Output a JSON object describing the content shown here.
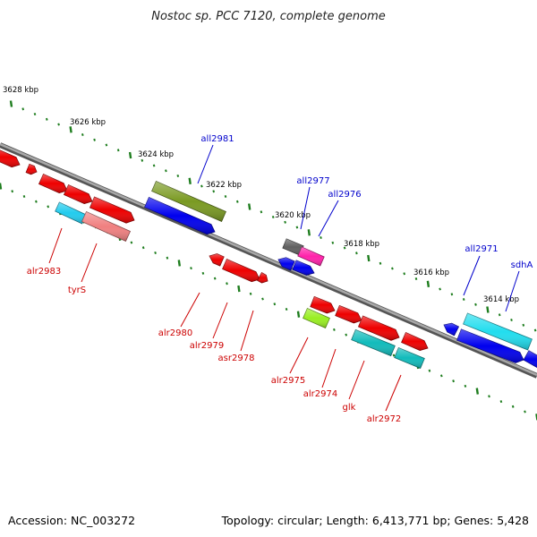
{
  "title": "Nostoc sp. PCC 7120, complete genome",
  "footer": {
    "accession": "Accession: NC_003272",
    "summary": "Topology: circular; Length: 6,413,771 bp; Genes: 5,428"
  },
  "colors": {
    "backbone": "#8a8a8a",
    "ruler": "#1e7d1e",
    "forward_label": "#0000cc",
    "reverse_label": "#cc0000"
  },
  "ruler_labels": [
    "3628 kbp",
    "3626 kbp",
    "3624 kbp",
    "3622 kbp",
    "3620 kbp",
    "3618 kbp",
    "3616 kbp",
    "3614 kbp"
  ],
  "gene_labels": [
    {
      "name": "all2981",
      "strand": "forward"
    },
    {
      "name": "all2977",
      "strand": "forward"
    },
    {
      "name": "all2976",
      "strand": "forward"
    },
    {
      "name": "all2971",
      "strand": "forward"
    },
    {
      "name": "sdhA",
      "strand": "forward"
    },
    {
      "name": "alr2983",
      "strand": "reverse"
    },
    {
      "name": "tyrS",
      "strand": "reverse"
    },
    {
      "name": "alr2980",
      "strand": "reverse"
    },
    {
      "name": "alr2979",
      "strand": "reverse"
    },
    {
      "name": "asr2978",
      "strand": "reverse"
    },
    {
      "name": "alr2975",
      "strand": "reverse"
    },
    {
      "name": "alr2974",
      "strand": "reverse"
    },
    {
      "name": "glk",
      "strand": "reverse"
    },
    {
      "name": "alr2972",
      "strand": "reverse"
    }
  ],
  "features": [
    {
      "id": "f-red-a",
      "color": "#ee0000",
      "arrow": "end"
    },
    {
      "id": "f-red-b",
      "color": "#ee0000",
      "arrow": "end"
    },
    {
      "id": "f-red-c",
      "color": "#ee0000",
      "arrow": "end"
    },
    {
      "id": "f-red-d",
      "color": "#ee0000",
      "arrow": "end"
    },
    {
      "id": "f-red-e",
      "color": "#ee0000",
      "arrow": "end"
    },
    {
      "id": "f-cyan-a",
      "color": "#22ccee",
      "arrow": "none"
    },
    {
      "id": "f-pink-tyrS",
      "color": "#f08080",
      "arrow": "none"
    },
    {
      "id": "f-olive-all2981",
      "color": "#7a9a22",
      "arrow": "none"
    },
    {
      "id": "f-blue-a",
      "color": "#0000ee",
      "arrow": "end"
    },
    {
      "id": "f-red-f",
      "color": "#ee0000",
      "arrow": "start"
    },
    {
      "id": "f-red-g",
      "color": "#ee0000",
      "arrow": "end"
    },
    {
      "id": "f-red-h",
      "color": "#ee0000",
      "arrow": "end"
    },
    {
      "id": "f-gray-all2977",
      "color": "#606060",
      "arrow": "none"
    },
    {
      "id": "f-magenta-all2976",
      "color": "#ff22aa",
      "arrow": "none"
    },
    {
      "id": "f-blue-b",
      "color": "#0000ee",
      "arrow": "start"
    },
    {
      "id": "f-blue-c",
      "color": "#0000ee",
      "arrow": "end"
    },
    {
      "id": "f-red-i",
      "color": "#ee0000",
      "arrow": "end"
    },
    {
      "id": "f-lime-alr2975",
      "color": "#99ee22",
      "arrow": "none"
    },
    {
      "id": "f-red-j",
      "color": "#ee0000",
      "arrow": "end"
    },
    {
      "id": "f-red-k",
      "color": "#ee0000",
      "arrow": "end"
    },
    {
      "id": "f-teal-glk",
      "color": "#11bbbb",
      "arrow": "none"
    },
    {
      "id": "f-red-l",
      "color": "#ee0000",
      "arrow": "end"
    },
    {
      "id": "f-teal-alr2972",
      "color": "#11bbbb",
      "arrow": "none"
    },
    {
      "id": "f-blue-d",
      "color": "#0000ee",
      "arrow": "start"
    },
    {
      "id": "f-cyan-all2971",
      "color": "#22ddee",
      "arrow": "none"
    },
    {
      "id": "f-blue-e",
      "color": "#0000ee",
      "arrow": "end"
    },
    {
      "id": "f-blue-f",
      "color": "#0000ee",
      "arrow": "none"
    }
  ]
}
